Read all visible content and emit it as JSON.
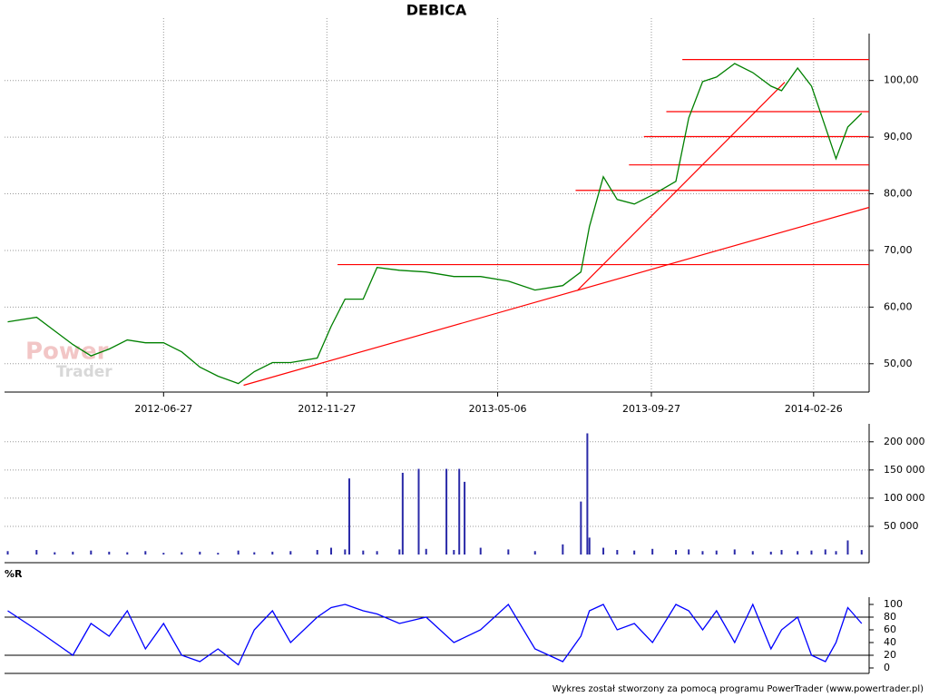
{
  "chart_data": [
    {
      "type": "line",
      "title": "DEBICA",
      "color": "#008000",
      "line_color": "#ff0000",
      "grid": true,
      "x": [
        "2012-02-02",
        "2012-02-29",
        "2012-03-17",
        "2012-04-03",
        "2012-04-20",
        "2012-05-07",
        "2012-05-24",
        "2012-06-10",
        "2012-06-27",
        "2012-07-14",
        "2012-07-31",
        "2012-08-17",
        "2012-09-05",
        "2012-09-20",
        "2012-10-07",
        "2012-10-24",
        "2012-11-18",
        "2012-12-01",
        "2012-12-14",
        "2012-12-31",
        "2013-01-13",
        "2013-02-03",
        "2013-02-28",
        "2013-03-26",
        "2013-04-20",
        "2013-05-16",
        "2013-06-10",
        "2013-07-06",
        "2013-07-23",
        "2013-07-31",
        "2013-08-13",
        "2013-08-26",
        "2013-09-11",
        "2013-09-28",
        "2013-10-20",
        "2013-11-01",
        "2013-11-14",
        "2013-11-27",
        "2013-12-14",
        "2013-12-31",
        "2014-01-17",
        "2014-01-27",
        "2014-02-11",
        "2014-02-24",
        "2014-03-09",
        "2014-03-19",
        "2014-03-30",
        "2014-04-12"
      ],
      "values": [
        57.4,
        58.2,
        55.8,
        53.4,
        51.4,
        52.6,
        54.2,
        53.7,
        53.7,
        52.1,
        49.4,
        47.8,
        46.5,
        48.6,
        50.2,
        50.2,
        51.0,
        56.6,
        61.4,
        61.4,
        67.0,
        66.5,
        66.2,
        65.4,
        65.4,
        64.6,
        63.0,
        63.8,
        66.2,
        74.2,
        83.0,
        79.0,
        78.2,
        79.8,
        82.2,
        93.4,
        99.8,
        100.6,
        103.0,
        101.4,
        99.0,
        98.2,
        102.2,
        99.0,
        91.8,
        86.2,
        91.8,
        94.2
      ],
      "xlim": [
        "2012-01-30",
        "2014-04-19"
      ],
      "xticks": [
        "2012-06-27",
        "2012-11-27",
        "2013-05-06",
        "2013-09-27",
        "2014-02-26"
      ],
      "ylim": [
        45,
        107
      ],
      "yticks": [
        {
          "value": 50,
          "label": "50,00"
        },
        {
          "value": 60,
          "label": "60,00"
        },
        {
          "value": 70,
          "label": "70,00"
        },
        {
          "value": 80,
          "label": "80,00"
        },
        {
          "value": 90,
          "label": "90,00"
        },
        {
          "value": 100,
          "label": "100,00"
        }
      ],
      "hlines": [
        {
          "value": 103.7,
          "from": "2013-10-26",
          "to": "2014-04-19"
        },
        {
          "value": 94.5,
          "from": "2013-10-11",
          "to": "2014-04-19"
        },
        {
          "value": 90.1,
          "from": "2013-09-20",
          "to": "2014-04-19"
        },
        {
          "value": 85.1,
          "from": "2013-09-06",
          "to": "2014-04-19"
        },
        {
          "value": 80.6,
          "from": "2013-07-18",
          "to": "2014-04-19"
        },
        {
          "value": 67.5,
          "from": "2012-12-07",
          "to": "2014-04-19"
        }
      ],
      "trendlines": [
        {
          "x": [
            "2012-09-10",
            "2014-04-19"
          ],
          "y": [
            46.2,
            77.6
          ]
        },
        {
          "x": [
            "2013-07-20",
            "2014-01-30"
          ],
          "y": [
            63.0,
            99.7
          ]
        }
      ]
    },
    {
      "type": "bar",
      "color": "#2a2aa8",
      "x": [
        "2012-02-02",
        "2012-02-29",
        "2012-03-17",
        "2012-04-03",
        "2012-04-20",
        "2012-05-07",
        "2012-05-24",
        "2012-06-10",
        "2012-06-27",
        "2012-07-14",
        "2012-07-31",
        "2012-08-17",
        "2012-09-05",
        "2012-09-20",
        "2012-10-07",
        "2012-10-24",
        "2012-11-18",
        "2012-12-01",
        "2012-12-14",
        "2012-12-18",
        "2012-12-31",
        "2013-01-13",
        "2013-02-03",
        "2013-02-06",
        "2013-02-21",
        "2013-02-28",
        "2013-03-19",
        "2013-03-26",
        "2013-03-31",
        "2013-04-05",
        "2013-04-20",
        "2013-05-16",
        "2013-06-10",
        "2013-07-06",
        "2013-07-23",
        "2013-07-29",
        "2013-07-31",
        "2013-08-13",
        "2013-08-26",
        "2013-09-11",
        "2013-09-28",
        "2013-10-20",
        "2013-11-01",
        "2013-11-14",
        "2013-11-27",
        "2013-12-14",
        "2013-12-31",
        "2014-01-17",
        "2014-01-27",
        "2014-02-11",
        "2014-02-24",
        "2014-03-09",
        "2014-03-19",
        "2014-03-30",
        "2014-04-12"
      ],
      "values": [
        6000,
        8000,
        4000,
        5000,
        7000,
        5000,
        4000,
        6000,
        3000,
        4000,
        5000,
        3000,
        7000,
        4000,
        5000,
        6000,
        8000,
        12000,
        9000,
        135000,
        7000,
        6000,
        9000,
        145000,
        152000,
        10000,
        152000,
        8000,
        152000,
        129000,
        12000,
        9000,
        6000,
        18000,
        94000,
        215000,
        30000,
        12000,
        8000,
        7000,
        10000,
        8000,
        9000,
        6000,
        7000,
        9000,
        6000,
        5000,
        8000,
        6000,
        7000,
        9000,
        6000,
        25000,
        8000
      ],
      "xlim": [
        "2012-01-30",
        "2014-04-19"
      ],
      "ylim": [
        0,
        219000
      ],
      "yticks": [
        {
          "value": 50000,
          "label": "50 000"
        },
        {
          "value": 100000,
          "label": "100 000"
        },
        {
          "value": 150000,
          "label": "150 000"
        },
        {
          "value": 200000,
          "label": "200 000"
        }
      ]
    },
    {
      "type": "line",
      "title": "%R",
      "color": "#0000ff",
      "x": [
        "2012-02-02",
        "2012-02-29",
        "2012-03-17",
        "2012-04-03",
        "2012-04-20",
        "2012-05-07",
        "2012-05-24",
        "2012-06-10",
        "2012-06-27",
        "2012-07-14",
        "2012-07-31",
        "2012-08-17",
        "2012-09-05",
        "2012-09-20",
        "2012-10-07",
        "2012-10-24",
        "2012-11-18",
        "2012-12-01",
        "2012-12-14",
        "2012-12-31",
        "2013-01-13",
        "2013-02-03",
        "2013-02-28",
        "2013-03-26",
        "2013-04-20",
        "2013-05-16",
        "2013-06-10",
        "2013-07-06",
        "2013-07-23",
        "2013-07-31",
        "2013-08-13",
        "2013-08-26",
        "2013-09-11",
        "2013-09-28",
        "2013-10-20",
        "2013-11-01",
        "2013-11-14",
        "2013-11-27",
        "2013-12-14",
        "2013-12-31",
        "2014-01-17",
        "2014-01-27",
        "2014-02-11",
        "2014-02-24",
        "2014-03-09",
        "2014-03-19",
        "2014-03-30",
        "2014-04-12"
      ],
      "values": [
        90,
        60,
        40,
        20,
        70,
        50,
        90,
        30,
        70,
        20,
        10,
        30,
        5,
        60,
        90,
        40,
        80,
        95,
        100,
        90,
        85,
        70,
        80,
        40,
        60,
        100,
        30,
        10,
        50,
        90,
        100,
        60,
        70,
        40,
        100,
        90,
        60,
        90,
        40,
        100,
        30,
        60,
        80,
        20,
        10,
        40,
        95,
        70
      ],
      "xlim": [
        "2012-01-30",
        "2014-04-19"
      ],
      "ylim": [
        0,
        100
      ],
      "yticks": [
        0,
        20,
        40,
        60,
        80,
        100
      ],
      "levels": [
        20,
        80
      ]
    }
  ],
  "watermark": {
    "line1": "Power",
    "line2": "Trader"
  },
  "footer": "Wykres został stworzony za pomocą programu PowerTrader (www.powertrader.pl)"
}
